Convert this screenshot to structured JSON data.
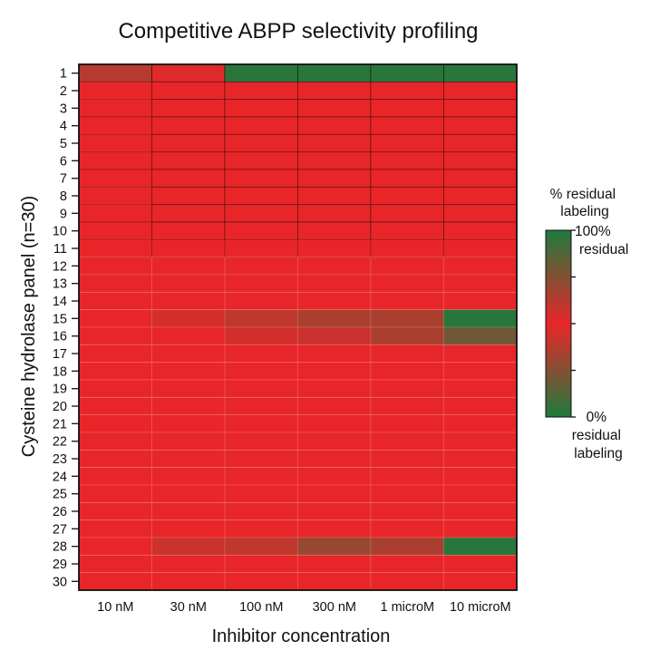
{
  "chart_data": {
    "type": "heatmap",
    "title": "Competitive ABPP selectivity profiling",
    "xlabel": "Inhibitor concentration",
    "ylabel": "Cysteine hydrolase panel (n=30)",
    "x_categories": [
      "10 nM",
      "30 nM",
      "100 nM",
      "300 nM",
      "1 microM",
      "10 microM"
    ],
    "y_categories": [
      "1",
      "2",
      "3",
      "4",
      "5",
      "6",
      "7",
      "8",
      "9",
      "10",
      "11",
      "12",
      "13",
      "14",
      "15",
      "16",
      "17",
      "18",
      "19",
      "20",
      "21",
      "22",
      "23",
      "24",
      "25",
      "26",
      "27",
      "28",
      "29",
      "30"
    ],
    "value_unit": "% residual labeling",
    "values": [
      [
        25,
        5,
        95,
        95,
        95,
        95
      ],
      [
        0,
        0,
        0,
        0,
        0,
        0
      ],
      [
        0,
        0,
        0,
        0,
        0,
        0
      ],
      [
        0,
        0,
        0,
        0,
        0,
        0
      ],
      [
        0,
        0,
        0,
        0,
        0,
        0
      ],
      [
        0,
        0,
        0,
        0,
        0,
        0
      ],
      [
        0,
        0,
        0,
        0,
        0,
        0
      ],
      [
        0,
        0,
        0,
        0,
        0,
        0
      ],
      [
        0,
        0,
        0,
        0,
        0,
        0
      ],
      [
        0,
        0,
        0,
        0,
        0,
        0
      ],
      [
        0,
        0,
        0,
        0,
        0,
        0
      ],
      [
        0,
        0,
        0,
        0,
        0,
        0
      ],
      [
        0,
        0,
        0,
        0,
        0,
        0
      ],
      [
        0,
        0,
        0,
        0,
        0,
        0
      ],
      [
        0,
        10,
        20,
        30,
        30,
        95
      ],
      [
        0,
        0,
        10,
        15,
        30,
        60
      ],
      [
        0,
        0,
        0,
        0,
        0,
        0
      ],
      [
        0,
        0,
        0,
        0,
        0,
        0
      ],
      [
        0,
        0,
        0,
        0,
        0,
        0
      ],
      [
        0,
        0,
        0,
        0,
        0,
        0
      ],
      [
        0,
        0,
        0,
        0,
        0,
        0
      ],
      [
        0,
        0,
        0,
        0,
        0,
        0
      ],
      [
        0,
        0,
        0,
        0,
        0,
        0
      ],
      [
        0,
        0,
        0,
        0,
        0,
        0
      ],
      [
        0,
        0,
        0,
        0,
        0,
        0
      ],
      [
        0,
        0,
        0,
        0,
        0,
        0
      ],
      [
        0,
        0,
        0,
        0,
        0,
        0
      ],
      [
        0,
        15,
        20,
        40,
        30,
        95
      ],
      [
        0,
        0,
        0,
        0,
        0,
        0
      ],
      [
        0,
        0,
        0,
        0,
        0,
        0
      ]
    ],
    "colorscale": {
      "low": "#e8262a",
      "high": "#1e7a3c"
    },
    "colorbar": {
      "title_lines": [
        "% residual",
        "labeling"
      ],
      "top_label_lines": [
        "100%",
        "residual"
      ],
      "bottom_label_lines": [
        "0%",
        "residual",
        "labeling"
      ]
    }
  }
}
